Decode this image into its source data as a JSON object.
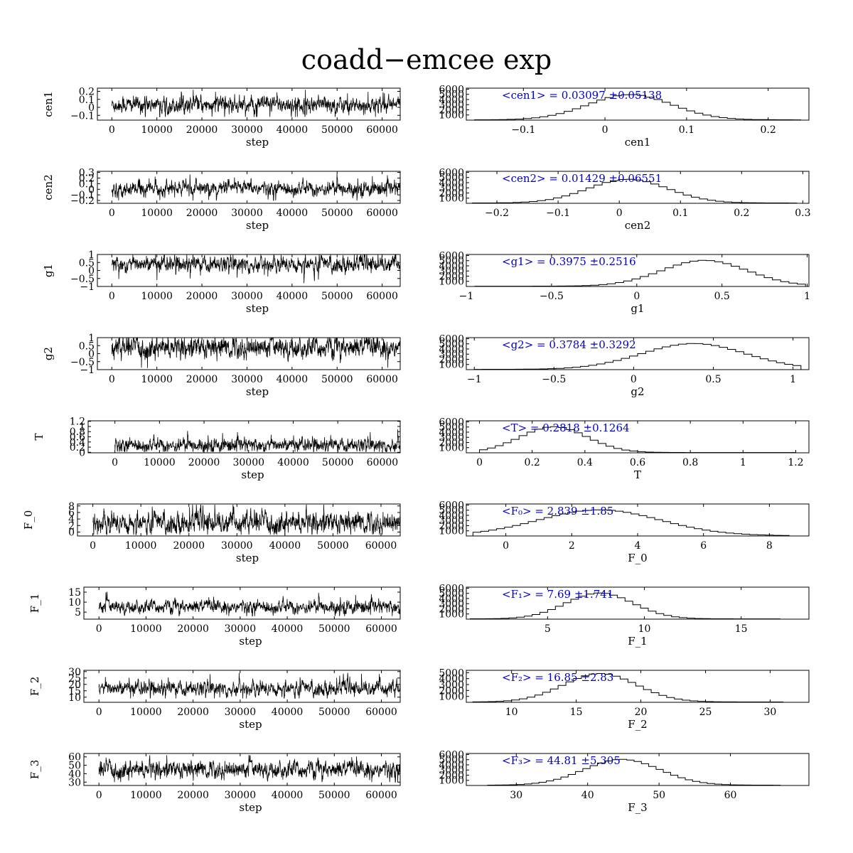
{
  "page": {
    "title": "coadd−emcee exp"
  },
  "chart_data": [
    {
      "type": "line",
      "panel": "trace",
      "param": "cen1",
      "ylabel": "cen1",
      "xlabel": "step",
      "xlim": [
        -3200,
        64000
      ],
      "ylim": [
        -0.16,
        0.24
      ],
      "xticks": [
        0,
        10000,
        20000,
        30000,
        40000,
        50000,
        60000
      ],
      "yticks": [
        0.2,
        0.1,
        0,
        -0.1
      ],
      "ytick_labels": [
        "0.2",
        "0.1",
        "0",
        "−0.1"
      ],
      "series": [
        {
          "mean": 0.031,
          "sigma": 0.05,
          "min": -0.12,
          "max": 0.22,
          "n_steps": 64000
        }
      ]
    },
    {
      "type": "bar",
      "panel": "histogram",
      "param": "cen1",
      "xlabel": "cen1",
      "xlim": [
        -0.17,
        0.25
      ],
      "ylim": [
        0,
        6200
      ],
      "xticks": [
        -0.1,
        0,
        0.1,
        0.2
      ],
      "xtick_labels": [
        "−0.1",
        "0",
        "0.1",
        "0.2"
      ],
      "yticks": [
        1000,
        2000,
        3000,
        4000,
        5000,
        6000
      ],
      "stat_label": "<cen1> = 0.03097 ±0.05138",
      "mean": 0.03097,
      "sigma": 0.05138,
      "range": [
        -0.16,
        0.24
      ],
      "peak": 4900
    },
    {
      "type": "line",
      "panel": "trace",
      "param": "cen2",
      "ylabel": "cen2",
      "xlabel": "step",
      "xlim": [
        -3200,
        64000
      ],
      "ylim": [
        -0.25,
        0.32
      ],
      "xticks": [
        0,
        10000,
        20000,
        30000,
        40000,
        50000,
        60000
      ],
      "yticks": [
        0.3,
        0.2,
        0.1,
        0,
        -0.1,
        -0.2
      ],
      "ytick_labels": [
        "0.3",
        "0.2",
        "0.1",
        "0",
        "−0.1",
        "−0.2"
      ],
      "series": [
        {
          "mean": 0.014,
          "sigma": 0.06,
          "min": -0.2,
          "max": 0.28,
          "n_steps": 64000
        }
      ]
    },
    {
      "type": "bar",
      "panel": "histogram",
      "param": "cen2",
      "xlabel": "cen2",
      "xlim": [
        -0.25,
        0.31
      ],
      "ylim": [
        0,
        6200
      ],
      "xticks": [
        -0.2,
        -0.1,
        0,
        0.1,
        0.2,
        0.3
      ],
      "xtick_labels": [
        "−0.2",
        "−0.1",
        "0",
        "0.1",
        "0.2",
        "0.3"
      ],
      "yticks": [
        1000,
        2000,
        3000,
        4000,
        5000,
        6000
      ],
      "stat_label": "<cen2> = 0.01429 ±0.06551",
      "mean": 0.01429,
      "sigma": 0.06551,
      "range": [
        -0.24,
        0.29
      ],
      "peak": 4600
    },
    {
      "type": "line",
      "panel": "trace",
      "param": "g1",
      "ylabel": "g1",
      "xlabel": "step",
      "xlim": [
        -3200,
        64000
      ],
      "ylim": [
        -1,
        1
      ],
      "xticks": [
        0,
        10000,
        20000,
        30000,
        40000,
        50000,
        60000
      ],
      "yticks": [
        1,
        0.5,
        0,
        -0.5,
        -1
      ],
      "ytick_labels": [
        "1",
        "0.5",
        "0",
        "−0.5",
        "−1"
      ],
      "series": [
        {
          "mean": 0.4,
          "sigma": 0.24,
          "min": -0.95,
          "max": 0.99,
          "n_steps": 64000
        }
      ]
    },
    {
      "type": "bar",
      "panel": "histogram",
      "param": "g1",
      "xlabel": "g1",
      "xlim": [
        -1,
        1.01
      ],
      "ylim": [
        0,
        6200
      ],
      "xticks": [
        -1,
        -0.5,
        0,
        0.5,
        1
      ],
      "xtick_labels": [
        "−1",
        "−0.5",
        "0",
        "0.5",
        "1"
      ],
      "yticks": [
        1000,
        2000,
        3000,
        4000,
        5000,
        6000
      ],
      "stat_label": "<g1> = 0.3975 ±0.2516",
      "mean": 0.3975,
      "sigma": 0.2516,
      "range": [
        -0.95,
        0.99
      ],
      "peak": 5000
    },
    {
      "type": "line",
      "panel": "trace",
      "param": "g2",
      "ylabel": "g2",
      "xlabel": "step",
      "xlim": [
        -3200,
        64000
      ],
      "ylim": [
        -1,
        1
      ],
      "xticks": [
        0,
        10000,
        20000,
        30000,
        40000,
        50000,
        60000
      ],
      "yticks": [
        1,
        0.5,
        0,
        -0.5,
        -1
      ],
      "ytick_labels": [
        "1",
        "0.5",
        "0",
        "−0.5",
        "−1"
      ],
      "series": [
        {
          "mean": 0.38,
          "sigma": 0.32,
          "min": -0.98,
          "max": 0.99,
          "n_steps": 64000
        }
      ]
    },
    {
      "type": "bar",
      "panel": "histogram",
      "param": "g2",
      "xlabel": "g2",
      "xlim": [
        -1.05,
        1.1
      ],
      "ylim": [
        0,
        6200
      ],
      "xticks": [
        -1,
        -0.5,
        0,
        0.5,
        1
      ],
      "xtick_labels": [
        "−1",
        "−0.5",
        "0",
        "0.5",
        "1"
      ],
      "yticks": [
        1000,
        2000,
        3000,
        4000,
        5000,
        6000
      ],
      "stat_label": "<g2> = 0.3784 ±0.3292",
      "mean": 0.3784,
      "sigma": 0.3292,
      "range": [
        -1.0,
        1.05
      ],
      "peak": 5000
    },
    {
      "type": "line",
      "panel": "trace",
      "param": "T",
      "ylabel": "T",
      "xlabel": "step",
      "xlim": [
        -6000,
        64000
      ],
      "ylim": [
        -0.02,
        1.22
      ],
      "xticks": [
        0,
        10000,
        20000,
        30000,
        40000,
        50000,
        60000
      ],
      "yticks": [
        1.2,
        1,
        0.8,
        0.6,
        0.4,
        0.2,
        0
      ],
      "ytick_labels": [
        "1.2",
        "1",
        "0.8",
        "0.6",
        "0.4",
        "0.2",
        "0"
      ],
      "series": [
        {
          "mean": 0.28,
          "sigma": 0.126,
          "min": 0.02,
          "max": 1.2,
          "n_steps": 64000
        }
      ]
    },
    {
      "type": "bar",
      "panel": "histogram",
      "param": "T",
      "xlabel": "T",
      "xlim": [
        -0.05,
        1.25
      ],
      "ylim": [
        0,
        6200
      ],
      "xticks": [
        0,
        0.2,
        0.4,
        0.6,
        0.8,
        1,
        1.2
      ],
      "xtick_labels": [
        "0",
        "0.2",
        "0.4",
        "0.6",
        "0.8",
        "1",
        "1.2"
      ],
      "yticks": [
        1000,
        2000,
        3000,
        4000,
        5000,
        6000
      ],
      "stat_label": "<T> = 0.2818 ±0.1264",
      "mean": 0.2818,
      "sigma": 0.1264,
      "range": [
        0.0,
        1.2
      ],
      "peak": 5000
    },
    {
      "type": "line",
      "panel": "trace",
      "param": "F_0",
      "ylabel": "F_0",
      "xlabel": "step",
      "xlim": [
        -3200,
        64000
      ],
      "ylim": [
        -1.2,
        8.6
      ],
      "xticks": [
        0,
        10000,
        20000,
        30000,
        40000,
        50000,
        60000
      ],
      "yticks": [
        8,
        6,
        4,
        2,
        0
      ],
      "ytick_labels": [
        "8",
        "6",
        "4",
        "2",
        "0"
      ],
      "series": [
        {
          "mean": 2.84,
          "sigma": 1.6,
          "min": -0.8,
          "max": 8.4,
          "n_steps": 64000
        }
      ]
    },
    {
      "type": "bar",
      "panel": "histogram",
      "param": "F_0",
      "xlabel": "F_0",
      "xlim": [
        -1.2,
        9.2
      ],
      "ylim": [
        0,
        6200
      ],
      "xticks": [
        0,
        2,
        4,
        6,
        8
      ],
      "xtick_labels": [
        "0",
        "2",
        "4",
        "6",
        "8"
      ],
      "yticks": [
        1000,
        2000,
        3000,
        4000,
        5000,
        6000
      ],
      "stat_label": "<F₀> = 2.839 ±1.85",
      "mean": 2.839,
      "sigma": 1.85,
      "range": [
        -1.0,
        8.6
      ],
      "peak": 5000
    },
    {
      "type": "line",
      "panel": "trace",
      "param": "F_1",
      "ylabel": "F_1",
      "xlabel": "step",
      "xlim": [
        -3200,
        64000
      ],
      "ylim": [
        1.5,
        17.5
      ],
      "xticks": [
        0,
        10000,
        20000,
        30000,
        40000,
        50000,
        60000
      ],
      "yticks": [
        15,
        10,
        5
      ],
      "ytick_labels": [
        "15",
        "10",
        "5"
      ],
      "series": [
        {
          "mean": 7.69,
          "sigma": 1.6,
          "min": 3.0,
          "max": 16.0,
          "n_steps": 64000
        }
      ]
    },
    {
      "type": "bar",
      "panel": "histogram",
      "param": "F_1",
      "xlabel": "F_1",
      "xlim": [
        0.8,
        18.5
      ],
      "ylim": [
        0,
        6200
      ],
      "xticks": [
        5,
        10,
        15
      ],
      "xtick_labels": [
        "5",
        "10",
        "15"
      ],
      "yticks": [
        1000,
        2000,
        3000,
        4000,
        5000,
        6000
      ],
      "stat_label": "<F₁> = 7.69 ±1.741",
      "mean": 7.69,
      "sigma": 1.741,
      "range": [
        1.0,
        17.0
      ],
      "peak": 5000
    },
    {
      "type": "line",
      "panel": "trace",
      "param": "F_2",
      "ylabel": "F_2",
      "xlabel": "step",
      "xlim": [
        -3200,
        64000
      ],
      "ylim": [
        6,
        31
      ],
      "xticks": [
        0,
        10000,
        20000,
        30000,
        40000,
        50000,
        60000
      ],
      "yticks": [
        30,
        25,
        20,
        15,
        10
      ],
      "ytick_labels": [
        "30",
        "25",
        "20",
        "15",
        "10"
      ],
      "series": [
        {
          "mean": 16.85,
          "sigma": 2.8,
          "min": 9.0,
          "max": 29.0,
          "n_steps": 64000
        }
      ]
    },
    {
      "type": "bar",
      "panel": "histogram",
      "param": "F_2",
      "xlabel": "F_2",
      "xlim": [
        6.5,
        33
      ],
      "ylim": [
        0,
        5400
      ],
      "xticks": [
        10,
        15,
        20,
        25,
        30
      ],
      "xtick_labels": [
        "10",
        "15",
        "20",
        "25",
        "30"
      ],
      "yticks": [
        1000,
        2000,
        3000,
        4000,
        5000
      ],
      "stat_label": "<F₂> = 16.85 ±2.83",
      "mean": 16.85,
      "sigma": 2.83,
      "range": [
        7.0,
        31.0
      ],
      "peak": 4800
    },
    {
      "type": "line",
      "panel": "trace",
      "param": "F_3",
      "ylabel": "F_3",
      "xlabel": "step",
      "xlim": [
        -3200,
        64000
      ],
      "ylim": [
        26,
        64
      ],
      "xticks": [
        0,
        10000,
        20000,
        30000,
        40000,
        50000,
        60000
      ],
      "yticks": [
        60,
        50,
        40,
        30
      ],
      "ytick_labels": [
        "60",
        "50",
        "40",
        "30"
      ],
      "series": [
        {
          "mean": 44.81,
          "sigma": 5.0,
          "min": 30.0,
          "max": 62.0,
          "n_steps": 64000
        }
      ]
    },
    {
      "type": "bar",
      "panel": "histogram",
      "param": "F_3",
      "xlabel": "F_3",
      "xlim": [
        23,
        71
      ],
      "ylim": [
        0,
        6200
      ],
      "xticks": [
        30,
        40,
        50,
        60
      ],
      "xtick_labels": [
        "30",
        "40",
        "50",
        "60"
      ],
      "yticks": [
        1000,
        2000,
        3000,
        4000,
        5000,
        6000
      ],
      "stat_label": "<F₃> = 44.81 ±5.305",
      "mean": 44.81,
      "sigma": 5.305,
      "range": [
        26.0,
        67.0
      ],
      "peak": 5000
    }
  ],
  "style": {
    "trace_color": "#000000",
    "hist_color": "#000000",
    "stat_color": "#0000cc"
  }
}
